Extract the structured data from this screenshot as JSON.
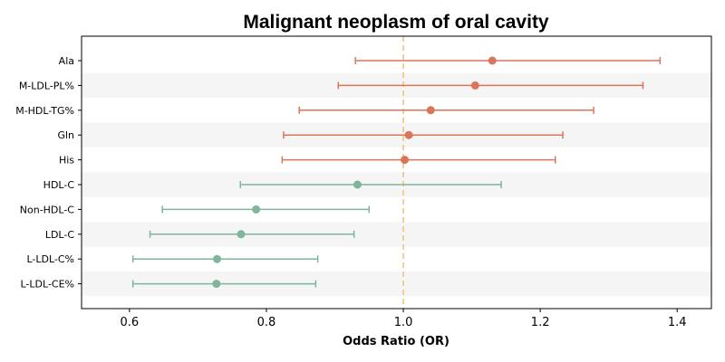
{
  "chart_data": {
    "type": "forest",
    "title": "Malignant neoplasm of oral cavity",
    "xlabel": "Odds Ratio (OR)",
    "ylabel": "",
    "xlim": [
      0.53,
      1.45
    ],
    "xticks": [
      0.6,
      0.8,
      1.0,
      1.2,
      1.4
    ],
    "xtick_labels": [
      "0.6",
      "0.8",
      "1.0",
      "1.2",
      "1.4"
    ],
    "reference_line": 1.0,
    "grid": false,
    "row_shading": "alternating",
    "colors": {
      "risk": "#d9765a",
      "protective": "#7fb59a",
      "reference_line": "#f0c07a",
      "row_band": "#f5f5f5"
    },
    "rows": [
      {
        "label": "Ala",
        "or": 1.13,
        "lower": 0.93,
        "upper": 1.375,
        "group": "risk"
      },
      {
        "label": "M-LDL-PL%",
        "or": 1.105,
        "lower": 0.905,
        "upper": 1.35,
        "group": "risk"
      },
      {
        "label": "M-HDL-TG%",
        "or": 1.04,
        "lower": 0.848,
        "upper": 1.278,
        "group": "risk"
      },
      {
        "label": "Gln",
        "or": 1.008,
        "lower": 0.825,
        "upper": 1.233,
        "group": "risk"
      },
      {
        "label": "His",
        "or": 1.002,
        "lower": 0.823,
        "upper": 1.222,
        "group": "risk"
      },
      {
        "label": "HDL-C",
        "or": 0.933,
        "lower": 0.762,
        "upper": 1.143,
        "group": "protective"
      },
      {
        "label": "Non-HDL-C",
        "or": 0.785,
        "lower": 0.648,
        "upper": 0.95,
        "group": "protective"
      },
      {
        "label": "LDL-C",
        "or": 0.763,
        "lower": 0.63,
        "upper": 0.928,
        "group": "protective"
      },
      {
        "label": "L-LDL-C%",
        "or": 0.728,
        "lower": 0.605,
        "upper": 0.875,
        "group": "protective"
      },
      {
        "label": "L-LDL-CE%",
        "or": 0.727,
        "lower": 0.605,
        "upper": 0.872,
        "group": "protective"
      }
    ]
  }
}
